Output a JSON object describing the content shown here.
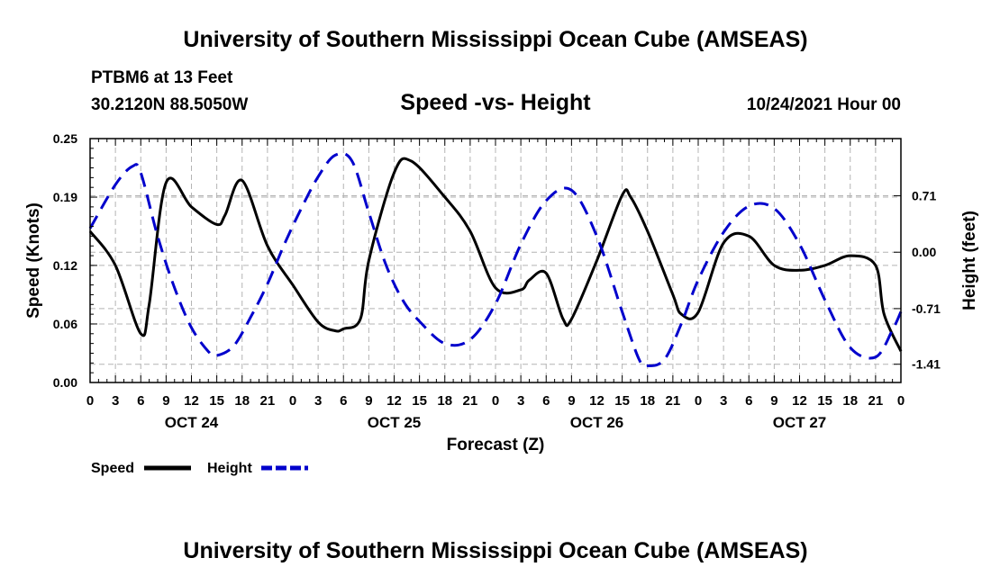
{
  "header": {
    "title": "University of Southern Mississippi Ocean Cube (AMSEAS)",
    "station": "PTBM6 at 13 Feet",
    "coordinates": "30.2120N  88.5050W",
    "subtitle": "Speed -vs- Height",
    "datetime": "10/24/2021 Hour 00"
  },
  "footer": {
    "title": "University of Southern Mississippi Ocean Cube (AMSEAS)"
  },
  "colors": {
    "speed": "#000000",
    "height": "#0000cc",
    "grid": "#b4b4b4"
  },
  "chart_data": {
    "type": "line",
    "title": "Speed -vs- Height",
    "xlabel": "Forecast (Z)",
    "ylabel": "Speed (Knots)",
    "y2label": "Height (feet)",
    "xlim": [
      0,
      96
    ],
    "ylim": [
      0,
      0.25
    ],
    "y2lim": [
      -1.64,
      1.43
    ],
    "x_tick_labels": [
      "0",
      "3",
      "6",
      "9",
      "12",
      "15",
      "18",
      "21",
      "0",
      "3",
      "6",
      "9",
      "12",
      "15",
      "18",
      "21",
      "0",
      "3",
      "6",
      "9",
      "12",
      "15",
      "18",
      "21",
      "0",
      "3",
      "6",
      "9",
      "12",
      "15",
      "18",
      "21",
      "0"
    ],
    "y_ticks": [
      {
        "value": 0,
        "label": "0.00"
      },
      {
        "value": 0.06,
        "label": "0.06"
      },
      {
        "value": 0.12,
        "label": "0.12"
      },
      {
        "value": 0.19,
        "label": "0.19"
      },
      {
        "value": 0.25,
        "label": "0.25"
      }
    ],
    "y2_ticks": [
      {
        "value": 0.71,
        "label": "0.71"
      },
      {
        "value": 0.0,
        "label": "0.00"
      },
      {
        "value": -0.71,
        "label": "-0.71"
      },
      {
        "value": -1.41,
        "label": "-1.41"
      }
    ],
    "day_labels": [
      {
        "hour": 12,
        "label": "OCT 24"
      },
      {
        "hour": 36,
        "label": "OCT 25"
      },
      {
        "hour": 60,
        "label": "OCT 26"
      },
      {
        "hour": 84,
        "label": "OCT 27"
      }
    ],
    "legend": [
      {
        "name": "Speed",
        "style": "solid"
      },
      {
        "name": "Height",
        "style": "dashed"
      }
    ],
    "series": [
      {
        "name": "Speed",
        "axis": "left",
        "style": "solid",
        "x": [
          0,
          3,
          6,
          7,
          9,
          12,
          15,
          16,
          18,
          21,
          24,
          27,
          29,
          30,
          32,
          33,
          36,
          38,
          42,
          45,
          48,
          51,
          52,
          54,
          56,
          57,
          60,
          63,
          64,
          66,
          69,
          70,
          72,
          75,
          78,
          81,
          84,
          87,
          90,
          93,
          94,
          96
        ],
        "y": [
          0.155,
          0.12,
          0.05,
          0.08,
          0.205,
          0.18,
          0.162,
          0.172,
          0.207,
          0.14,
          0.1,
          0.062,
          0.053,
          0.055,
          0.065,
          0.125,
          0.215,
          0.227,
          0.19,
          0.155,
          0.097,
          0.095,
          0.105,
          0.112,
          0.065,
          0.065,
          0.125,
          0.192,
          0.19,
          0.155,
          0.09,
          0.07,
          0.072,
          0.143,
          0.15,
          0.12,
          0.115,
          0.12,
          0.13,
          0.12,
          0.07,
          0.032
        ]
      },
      {
        "name": "Height",
        "axis": "right",
        "style": "dashed",
        "x": [
          0,
          3,
          5,
          6,
          8,
          10,
          12,
          14,
          15,
          17,
          19,
          21,
          23,
          25,
          27,
          29,
          31,
          33,
          35,
          37,
          39,
          42,
          45,
          48,
          51,
          54,
          57,
          60,
          63,
          65,
          66,
          68,
          70,
          72,
          75,
          78,
          81,
          84,
          87,
          90,
          93,
          95,
          96
        ],
        "y": [
          0.3,
          0.85,
          1.08,
          1.0,
          0.2,
          -0.45,
          -0.95,
          -1.25,
          -1.3,
          -1.18,
          -0.82,
          -0.4,
          0.1,
          0.55,
          0.95,
          1.22,
          1.15,
          0.5,
          -0.15,
          -0.6,
          -0.87,
          -1.15,
          -1.1,
          -0.65,
          0.1,
          0.65,
          0.78,
          0.2,
          -0.75,
          -1.35,
          -1.43,
          -1.35,
          -0.9,
          -0.35,
          0.25,
          0.58,
          0.55,
          0.1,
          -0.6,
          -1.2,
          -1.32,
          -0.98,
          -0.75
        ]
      }
    ]
  }
}
